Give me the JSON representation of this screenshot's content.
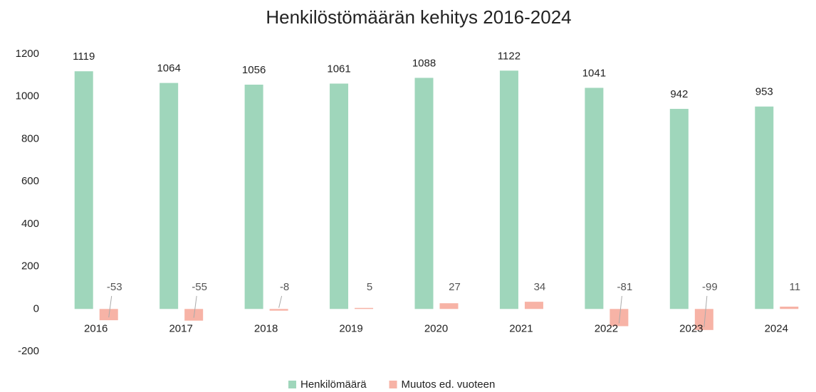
{
  "chart_data": {
    "type": "bar",
    "title": "Henkilöstömäärän kehitys 2016-2024",
    "categories": [
      "2016",
      "2017",
      "2018",
      "2019",
      "2020",
      "2021",
      "2022",
      "2023",
      "2024"
    ],
    "series": [
      {
        "name": "Henkilömäärä",
        "color": "#9fd6bb",
        "values": [
          1119,
          1064,
          1056,
          1061,
          1088,
          1122,
          1041,
          942,
          953
        ]
      },
      {
        "name": "Muutos ed. vuoteen",
        "color": "#f7b3a6",
        "values": [
          -53,
          -55,
          -8,
          5,
          27,
          34,
          -81,
          -99,
          11
        ]
      }
    ],
    "ylim": [
      -200,
      1200
    ],
    "yticks": [
      -200,
      0,
      200,
      400,
      600,
      800,
      1000,
      1200
    ],
    "grid": false,
    "legend": "bottom"
  }
}
